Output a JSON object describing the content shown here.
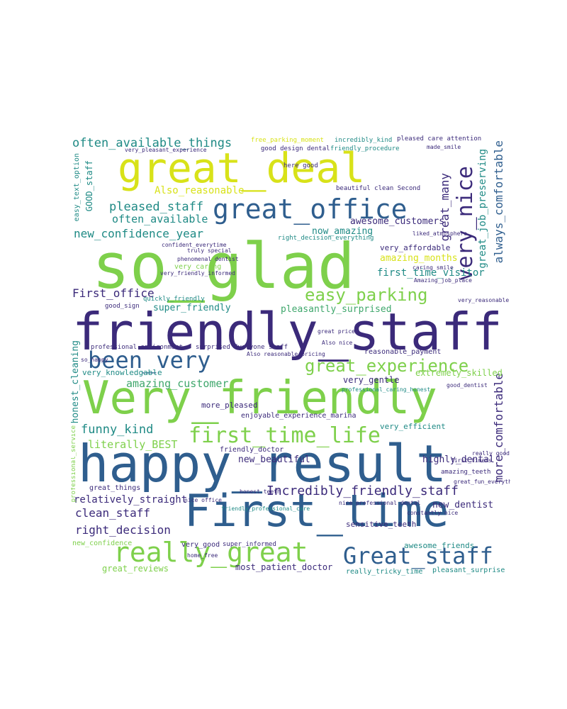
{
  "palette": {
    "navy": "#3b2a7a",
    "blue": "#2f5e8e",
    "teal": "#1f8a85",
    "green": "#3fa76c",
    "lime": "#7ed04b",
    "yellow": "#d8e219",
    "background": "#ffffff"
  },
  "words": {
    "so_glad": "so_glad",
    "friendly_staff": "friendly_staff",
    "happy_result": "happy_result",
    "Very_friendly": "Very_friendly",
    "great_deal": "great_deal",
    "First_time": "First_time",
    "great_office": "great_office",
    "really_great": "really_great",
    "Great_staff": "Great_staff",
    "been_very": "been_very",
    "first_time_life": "first_time_life",
    "very_nice": "very_nice",
    "great_experience": "great_experience",
    "easy_parking": "easy_parking",
    "Incredibly_friendly_staff": "Incredibly_friendly_staff",
    "often_available_things": "often_available_things",
    "pleased_staff": "pleased_staff",
    "new_confidence_year": "new_confidence_year",
    "often_available": "often_available",
    "Also_reasonable": "Also_reasonable",
    "great_many": "great_many",
    "great_job_preserving": "great_job_preserving",
    "always_comfortable": "always_comfortable",
    "more_comfortable": "more_comfortable",
    "First_office": "First_office",
    "amazing_customer": "amazing_customer",
    "funny_kind": "funny_kind",
    "literally_BEST": "literally_BEST",
    "clean_staff": "clean_staff",
    "right_decision": "right_decision",
    "relatively_straight": "relatively_straight",
    "new_beautiful": "new_beautiful",
    "new_dentist": "new_dentist",
    "awesome_customers": "awesome_customers",
    "now_amazing": "now_amazing",
    "first_time_visitor": "first_time_visitor",
    "amazing_months": "amazing_months",
    "very_affordable": "very_affordable",
    "super_friendly": "super_friendly",
    "pleasantly_surprised": "pleasantly_surprised",
    "very_knowledgable": "very_knowledgable",
    "extremely_skilled": "extremely_skilled",
    "very_gentle": "very_gentle",
    "highly_dental": "highly_dental",
    "enjoyable_experience_marina": "enjoyable_experience_marina",
    "very_efficient": "very_efficient",
    "most_patient_doctor": "most_patient_doctor",
    "great_reviews": "great_reviews",
    "awesome_friends": "awesome_friends",
    "sensitive_teeth": "sensitive_teeth",
    "honest_cleaning": "honest_cleaning",
    "GOOD_staff": "GOOD_staff",
    "easy_text_option": "easy_text_option",
    "professional_service": "professional_service",
    "new_confidence": "new_confidence",
    "very_good": "very_good",
    "super_informed": "super_informed",
    "great_things": "great_things",
    "pleasant_surprise": "pleasant_surprise",
    "really_tricky_time": "really_tricky_time",
    "more_pleased": "more_pleased",
    "friendly_doctor": "friendly_doctor",
    "reasonable_payment": "reasonable_payment",
    "very_caring": "very_caring",
    "quickly_friendly": "quickly_friendly",
    "good_sign": "good_sign",
    "professional_environment": "professional environment",
    "surprised_everyone_staff": "surprised Everyone staff",
    "free_parking_moment": "free_parking_moment",
    "incredibly_kind": "incredibly_kind",
    "pleased_care_attention": "pleased care attention",
    "good_design_dental": "good design dental",
    "friendly_procedure": "friendly_procedure",
    "very_pleasant_experience": "very_pleasant_experience",
    "made_smile": "made_smile",
    "here_good": "here good",
    "beautiful_clean_second": "beautiful clean Second",
    "right_decision_everything": "right_decision_everything",
    "liked_atmosphere": "liked_atmosphere",
    "caring_smile": "caring smile",
    "also_reasonable_pricing": "Also reasonable pricing",
    "also_nice": "Also nice",
    "confident_everytime": "confident_everytime",
    "truly_special": "truly special",
    "phenomenal_dentist": "phenomenal dentist",
    "very_friendly_informed": "very_friendly_informed",
    "professional_caring_honest": "professional_caring_honest",
    "good_dentist": "good_dentist",
    "very_reasonable": "very_reasonable",
    "amazing_job_place": "Amazing_job_place",
    "so_happy": "so_happy",
    "first_timers": "first_timers",
    "amazing_teeth": "amazing_teeth",
    "great_fun_everything": "great_fun_everything",
    "friendly_professional_care": "friendly_professional_care",
    "nice_professional_dental": "nice professional dental",
    "constantly_nice": "constantly nice",
    "really_good": "really good",
    "home_free": "home_free",
    "nice_office": "nice office",
    "great_price": "great price",
    "honest_teeth": "honest teeth"
  }
}
